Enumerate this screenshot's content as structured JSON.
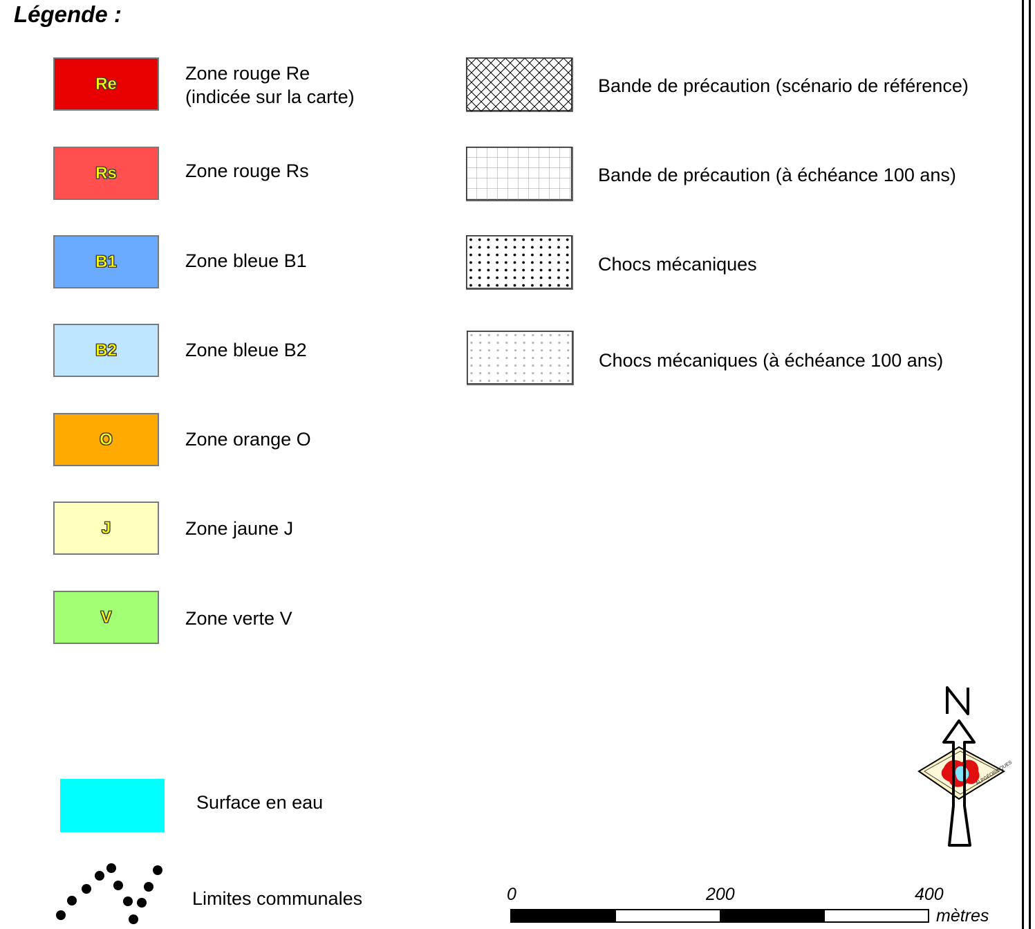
{
  "legend": {
    "title": "Légende :",
    "zones": [
      {
        "code": "Re",
        "label_lines": [
          "Zone rouge Re",
          "(indicée sur la carte)"
        ],
        "color": "#e80000"
      },
      {
        "code": "Rs",
        "label_lines": [
          "Zone rouge Rs"
        ],
        "color": "#ff4f4f"
      },
      {
        "code": "B1",
        "label_lines": [
          "Zone bleue B1"
        ],
        "color": "#6aabff"
      },
      {
        "code": "B2",
        "label_lines": [
          "Zone bleue B2"
        ],
        "color": "#bfe6ff"
      },
      {
        "code": "O",
        "label_lines": [
          "Zone orange O"
        ],
        "color": "#ffaa00"
      },
      {
        "code": "J",
        "label_lines": [
          "Zone jaune J"
        ],
        "color": "#ffffbe"
      },
      {
        "code": "V",
        "label_lines": [
          "Zone verte V"
        ],
        "color": "#a3ff73"
      }
    ],
    "patterns": [
      {
        "label": "Bande de précaution (scénario de référence)",
        "pattern": "crosshatch"
      },
      {
        "label": "Bande de précaution (à échéance 100 ans)",
        "pattern": "grid"
      },
      {
        "label": "Chocs mécaniques",
        "pattern": "dots-black"
      },
      {
        "label": "Chocs mécaniques (à échéance 100 ans)",
        "pattern": "dots-grey"
      }
    ],
    "water": {
      "label": "Surface en eau",
      "color": "#00ffff"
    },
    "boundaries": {
      "label": "Limites communales"
    }
  },
  "scale_bar": {
    "ticks": [
      "0",
      "200",
      "400"
    ],
    "unit": "mètres"
  },
  "north_arrow": {
    "letter": "N",
    "logo_text": "ALPGÉORISQUES"
  }
}
